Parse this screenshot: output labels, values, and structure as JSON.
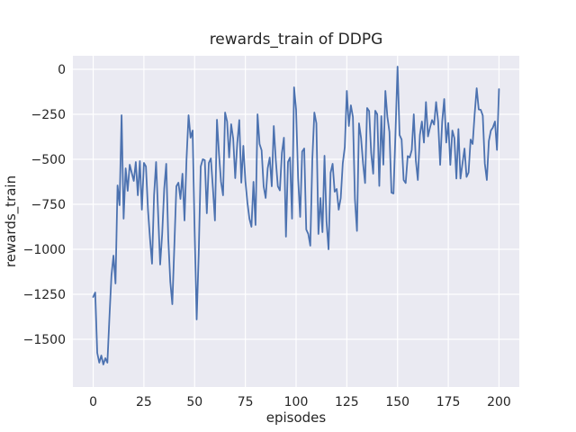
{
  "figure": {
    "title": "rewards_train of DDPG",
    "xlabel": "episodes",
    "ylabel": "rewards_train"
  },
  "chart_data": {
    "type": "line",
    "title": "rewards_train of DDPG",
    "xlabel": "episodes",
    "ylabel": "rewards_train",
    "xlim": [
      -10,
      210
    ],
    "ylim": [
      -1765,
      75
    ],
    "grid": true,
    "legend": "none",
    "x_ticks": [
      0,
      25,
      50,
      75,
      100,
      125,
      150,
      175,
      200
    ],
    "x_tick_labels": [
      "0",
      "25",
      "50",
      "75",
      "100",
      "125",
      "150",
      "175",
      "200"
    ],
    "y_ticks": [
      0,
      -250,
      -500,
      -750,
      -1000,
      -1250,
      -1500
    ],
    "y_tick_labels": [
      "0",
      "−250",
      "−500",
      "−750",
      "−1000",
      "−1250",
      "−1500"
    ],
    "style": {
      "figure_bg": "#ffffff",
      "axes_bg": "#EAEAF2",
      "grid_color": "#ffffff",
      "line_color": "#4C72B0",
      "text_color": "#262626"
    },
    "series": [
      {
        "name": "rewards_train",
        "x_mode": "index_is_episode_0_to_200",
        "values": [
          -1265,
          -1240,
          -1575,
          -1630,
          -1590,
          -1640,
          -1605,
          -1630,
          -1380,
          -1145,
          -1035,
          -1190,
          -645,
          -755,
          -255,
          -830,
          -550,
          -675,
          -530,
          -575,
          -620,
          -515,
          -700,
          -510,
          -780,
          -520,
          -540,
          -780,
          -940,
          -1080,
          -700,
          -515,
          -800,
          -1085,
          -915,
          -665,
          -525,
          -940,
          -1180,
          -1305,
          -980,
          -650,
          -630,
          -720,
          -580,
          -840,
          -500,
          -255,
          -380,
          -340,
          -900,
          -1390,
          -1030,
          -540,
          -500,
          -505,
          -800,
          -520,
          -495,
          -660,
          -840,
          -280,
          -470,
          -625,
          -700,
          -240,
          -290,
          -490,
          -305,
          -385,
          -605,
          -410,
          -282,
          -630,
          -425,
          -620,
          -740,
          -830,
          -875,
          -625,
          -865,
          -250,
          -415,
          -450,
          -650,
          -715,
          -550,
          -490,
          -650,
          -315,
          -505,
          -650,
          -673,
          -465,
          -380,
          -930,
          -515,
          -490,
          -830,
          -100,
          -225,
          -607,
          -820,
          -457,
          -440,
          -890,
          -915,
          -980,
          -500,
          -240,
          -300,
          -915,
          -715,
          -905,
          -480,
          -848,
          -1000,
          -575,
          -525,
          -680,
          -665,
          -780,
          -715,
          -523,
          -432,
          -120,
          -315,
          -200,
          -265,
          -723,
          -898,
          -300,
          -380,
          -523,
          -632,
          -215,
          -232,
          -465,
          -580,
          -230,
          -250,
          -648,
          -260,
          -530,
          -120,
          -265,
          -348,
          -685,
          -690,
          -348,
          15,
          -365,
          -390,
          -615,
          -632,
          -482,
          -490,
          -448,
          -250,
          -506,
          -615,
          -365,
          -290,
          -407,
          -182,
          -373,
          -323,
          -282,
          -307,
          -182,
          -290,
          -531,
          -290,
          -165,
          -407,
          -298,
          -531,
          -340,
          -382,
          -607,
          -332,
          -607,
          -523,
          -440,
          -598,
          -573,
          -390,
          -415,
          -248,
          -105,
          -223,
          -225,
          -257,
          -523,
          -615,
          -398,
          -340,
          -323,
          -290,
          -448,
          -110
        ]
      }
    ]
  }
}
